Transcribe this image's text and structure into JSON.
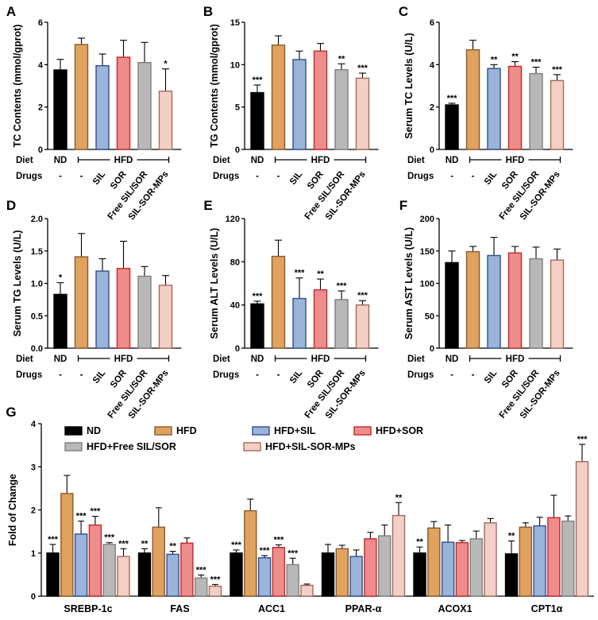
{
  "colors": {
    "fills": [
      "#000000",
      "#e0a25f",
      "#9ab4da",
      "#ef8c8c",
      "#b8b8b8",
      "#f3cfc6"
    ],
    "strokes": [
      "#000000",
      "#8a5a2b",
      "#2d4f8e",
      "#c42828",
      "#7f7f7f",
      "#a06c5a"
    ]
  },
  "conditions": {
    "diet_label": "Diet",
    "drugs_label": "Drugs",
    "nd": "ND",
    "hfd": "HFD",
    "drugs": [
      "-",
      "-",
      "SIL",
      "SOR",
      "Free SIL/SOR",
      "SIL-SOR-MPs"
    ]
  },
  "chart_data": [
    {
      "panel": "A",
      "type": "bar",
      "ylabel": "TC Contents (mmol/gprot)",
      "ylim": [
        0,
        6
      ],
      "yticks": [
        "0",
        "2",
        "4",
        "6"
      ],
      "categories": [
        "ND",
        "HFD",
        "HFD+SIL",
        "HFD+SOR",
        "HFD+Free SIL/SOR",
        "HFD+SIL-SOR-MPs"
      ],
      "values": [
        3.75,
        4.95,
        3.95,
        4.35,
        4.1,
        2.75
      ],
      "errors": [
        0.5,
        0.3,
        0.55,
        0.8,
        0.95,
        1.05
      ],
      "sig": [
        "",
        "",
        "",
        "",
        "",
        "*"
      ]
    },
    {
      "panel": "B",
      "type": "bar",
      "ylabel": "TG Contents (mmol/gprot)",
      "ylim": [
        0,
        15
      ],
      "yticks": [
        "0",
        "5",
        "10",
        "15"
      ],
      "categories": [
        "ND",
        "HFD",
        "HFD+SIL",
        "HFD+SOR",
        "HFD+Free SIL/SOR",
        "HFD+SIL-SOR-MPs"
      ],
      "values": [
        6.7,
        12.3,
        10.6,
        11.6,
        9.4,
        8.4
      ],
      "errors": [
        0.9,
        1.1,
        1.0,
        0.9,
        0.7,
        0.6
      ],
      "sig": [
        "***",
        "",
        "",
        "",
        "**",
        "***"
      ]
    },
    {
      "panel": "C",
      "type": "bar",
      "ylabel": "Serum TC Levels (U/L)",
      "ylim": [
        0,
        6
      ],
      "yticks": [
        "0",
        "2",
        "4",
        "6"
      ],
      "categories": [
        "ND",
        "HFD",
        "HFD+SIL",
        "HFD+SOR",
        "HFD+Free SIL/SOR",
        "HFD+SIL-SOR-MPs"
      ],
      "values": [
        2.1,
        4.7,
        3.82,
        3.92,
        3.58,
        3.25
      ],
      "errors": [
        0.08,
        0.45,
        0.18,
        0.22,
        0.3,
        0.28
      ],
      "sig": [
        "***",
        "",
        "**",
        "**",
        "***",
        "***"
      ]
    },
    {
      "panel": "D",
      "type": "bar",
      "ylabel": "Serum TG Levels (U/L)",
      "ylim": [
        0,
        2.0
      ],
      "yticks": [
        "0.0",
        "0.5",
        "1.0",
        "1.5",
        "2.0"
      ],
      "categories": [
        "ND",
        "HFD",
        "HFD+SIL",
        "HFD+SOR",
        "HFD+Free SIL/SOR",
        "HFD+SIL-SOR-MPs"
      ],
      "values": [
        0.83,
        1.41,
        1.19,
        1.23,
        1.11,
        0.97
      ],
      "errors": [
        0.18,
        0.36,
        0.19,
        0.42,
        0.15,
        0.15
      ],
      "sig": [
        "*",
        "",
        "",
        "",
        "",
        ""
      ]
    },
    {
      "panel": "E",
      "type": "bar",
      "ylabel": "Serum ALT Levels (U/L)",
      "ylim": [
        0,
        120
      ],
      "yticks": [
        "0",
        "40",
        "80",
        "120"
      ],
      "categories": [
        "ND",
        "HFD",
        "HFD+SIL",
        "HFD+SOR",
        "HFD+Free SIL/SOR",
        "HFD+SIL-SOR-MPs"
      ],
      "values": [
        41,
        85,
        46,
        54,
        45,
        40
      ],
      "errors": [
        2.5,
        15,
        19,
        10,
        8,
        4
      ],
      "sig": [
        "***",
        "",
        "***",
        "**",
        "***",
        "***"
      ]
    },
    {
      "panel": "F",
      "type": "bar",
      "ylabel": "Serum AST Levels (U/L)",
      "ylim": [
        0,
        200
      ],
      "yticks": [
        "0",
        "50",
        "100",
        "150",
        "200"
      ],
      "categories": [
        "ND",
        "HFD",
        "HFD+SIL",
        "HFD+SOR",
        "HFD+Free SIL/SOR",
        "HFD+SIL-SOR-MPs"
      ],
      "values": [
        132,
        149,
        143,
        147,
        138,
        136
      ],
      "errors": [
        18,
        8,
        28,
        10,
        18,
        17
      ],
      "sig": [
        "",
        "",
        "",
        "",
        "",
        ""
      ]
    },
    {
      "panel": "G",
      "type": "bar",
      "ylabel": "Fold of Change",
      "ylim": [
        0,
        4
      ],
      "yticks": [
        "0",
        "1",
        "2",
        "3",
        "4"
      ],
      "categories": [
        "SREBP-1c",
        "FAS",
        "ACC1",
        "PPAR-α",
        "ACOX1",
        "CPT1α"
      ],
      "series": [
        {
          "name": "ND",
          "values": [
            1.0,
            1.0,
            1.0,
            1.0,
            1.0,
            0.98
          ],
          "errors": [
            0.2,
            0.1,
            0.07,
            0.2,
            0.14,
            0.3
          ],
          "sig": [
            "***",
            "**",
            "***",
            "",
            "**",
            "**"
          ]
        },
        {
          "name": "HFD",
          "values": [
            2.38,
            1.6,
            1.98,
            1.1,
            1.58,
            1.6
          ],
          "errors": [
            0.42,
            0.45,
            0.27,
            0.08,
            0.15,
            0.1
          ],
          "sig": [
            "",
            "",
            "",
            "",
            "",
            ""
          ]
        },
        {
          "name": "HFD+SIL",
          "values": [
            1.44,
            0.97,
            0.89,
            0.92,
            1.25,
            1.63
          ],
          "errors": [
            0.3,
            0.07,
            0.05,
            0.15,
            0.4,
            0.2
          ],
          "sig": [
            "***",
            "**",
            "***",
            "",
            "",
            ""
          ]
        },
        {
          "name": "HFD+SOR",
          "values": [
            1.65,
            1.23,
            1.13,
            1.33,
            1.24,
            1.82
          ],
          "errors": [
            0.2,
            0.12,
            0.06,
            0.15,
            0.05,
            0.52
          ],
          "sig": [
            "***",
            "",
            "***",
            "",
            "",
            ""
          ]
        },
        {
          "name": "HFD+Free SIL/SOR",
          "values": [
            1.2,
            0.42,
            0.73,
            1.4,
            1.33,
            1.74
          ],
          "errors": [
            0.04,
            0.07,
            0.15,
            0.25,
            0.18,
            0.12
          ],
          "sig": [
            "***",
            "***",
            "***",
            "",
            "",
            ""
          ]
        },
        {
          "name": "HFD+SIL-SOR-MPs",
          "values": [
            0.92,
            0.23,
            0.25,
            1.87,
            1.7,
            3.12
          ],
          "errors": [
            0.18,
            0.04,
            0.03,
            0.3,
            0.1,
            0.4
          ],
          "sig": [
            "***",
            "***",
            "",
            "**",
            "",
            "***"
          ]
        }
      ]
    }
  ]
}
